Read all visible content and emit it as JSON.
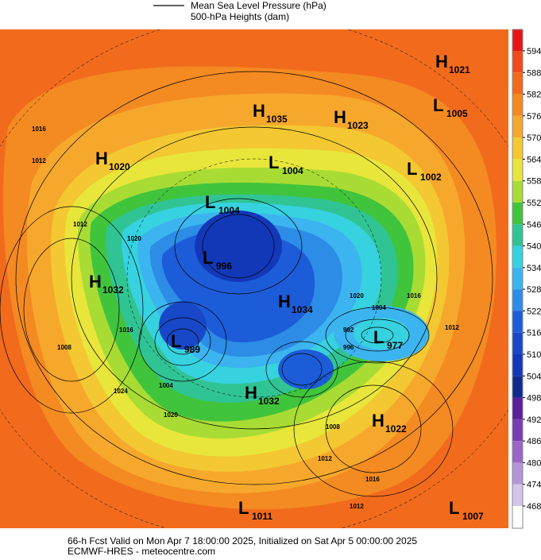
{
  "header": {
    "line1": "Mean Sea Level Pressure (hPa)",
    "line2": "500-hPa Heights (dam)"
  },
  "colorbar": {
    "ticks": [
      594,
      588,
      582,
      576,
      570,
      564,
      558,
      552,
      546,
      540,
      534,
      528,
      522,
      516,
      510,
      504,
      498,
      492,
      486,
      480,
      474,
      468
    ]
  },
  "centers": [
    {
      "type": "H",
      "value": "1021"
    },
    {
      "type": "L",
      "value": "1005"
    },
    {
      "type": "H",
      "value": "1035"
    },
    {
      "type": "H",
      "value": "1023"
    },
    {
      "type": "H",
      "value": "1020"
    },
    {
      "type": "L",
      "value": "1004"
    },
    {
      "type": "L",
      "value": "1002"
    },
    {
      "type": "L",
      "value": "1004"
    },
    {
      "type": "L",
      "value": "996"
    },
    {
      "type": "H",
      "value": "1032"
    },
    {
      "type": "H",
      "value": "1034"
    },
    {
      "type": "L",
      "value": "977"
    },
    {
      "type": "L",
      "value": "989"
    },
    {
      "type": "H",
      "value": "1032"
    },
    {
      "type": "H",
      "value": "1022"
    },
    {
      "type": "L",
      "value": "1011"
    },
    {
      "type": "L",
      "value": "1007"
    }
  ],
  "contour_labels": [
    "1016",
    "1012",
    "1020",
    "1012",
    "1008",
    "1016",
    "1004",
    "1020",
    "1024",
    "1004",
    "1016",
    "1020",
    "1012",
    "992",
    "996",
    "1008",
    "1012",
    "1016",
    "1012"
  ],
  "footer": {
    "line1": "66-h Fcst Valid on Mon Apr  7 18:00:00 2025, Initialized on Sat Apr  5 00:00:00 2025",
    "line2": "ECMWF-HRES  - meteocentre.com"
  }
}
